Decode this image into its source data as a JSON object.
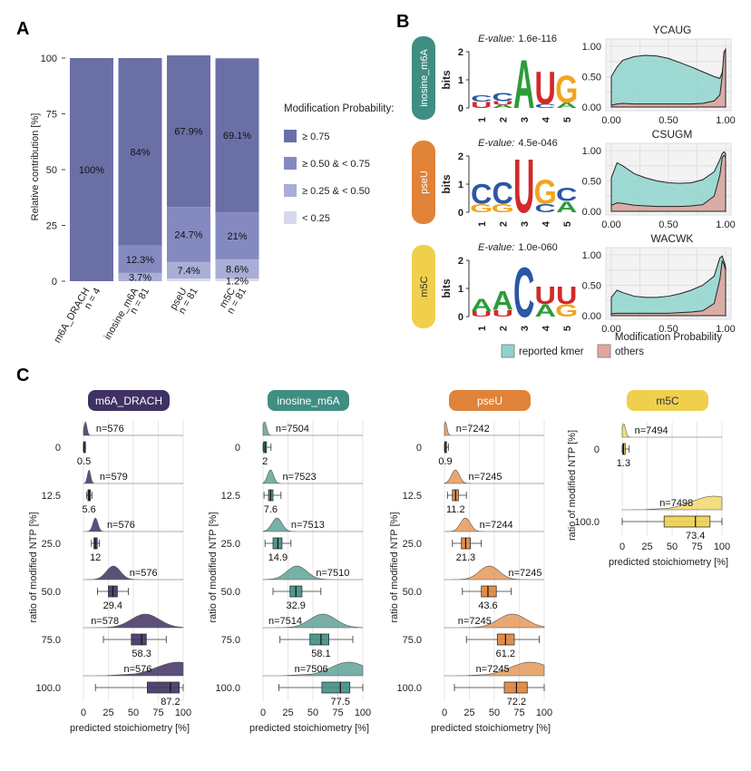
{
  "panels": {
    "A": "A",
    "B": "B",
    "C": "C"
  },
  "colors": {
    "bar_c1": "#6a70a6",
    "bar_c2": "#848ac0",
    "bar_c3": "#a9aed6",
    "bar_c4": "#d6d9ec",
    "kmer": "#8fd3cc",
    "others": "#e3a59e",
    "m6A_DRACH": "#3f3163",
    "inosine_m6A": "#3f8e83",
    "pseU": "#e08338",
    "m5C": "#f0cf4c",
    "logo_A": "#2e9b3a",
    "logo_C": "#2a57a6",
    "logo_G": "#f0a51e",
    "logo_U": "#d32929"
  },
  "panel_A": {
    "chart_data": {
      "type": "bar",
      "stacked": true,
      "ylabel": "Relative contribution [%]",
      "ylim": [
        0,
        100
      ],
      "yticks": [
        "0",
        "25",
        "50",
        "75",
        "100"
      ],
      "categories": [
        "m6A_DRACH",
        "inosine_m6A",
        "pseU",
        "m5C"
      ],
      "category_n": [
        "n = 4",
        "n = 81",
        "n = 81",
        "n = 81"
      ],
      "series": [
        {
          "name": "< 0.25",
          "values": [
            0,
            0,
            1.2,
            1.2
          ]
        },
        {
          "name": "≥ 0.25 & < 0.50",
          "values": [
            0,
            3.7,
            7.4,
            8.6
          ]
        },
        {
          "name": "≥ 0.50 & < 0.75",
          "values": [
            0,
            12.3,
            24.7,
            21
          ]
        },
        {
          "name": "≥ 0.75",
          "values": [
            100,
            84,
            67.9,
            69.1
          ]
        }
      ],
      "labels": [
        {
          "category": 0,
          "series": "≥ 0.75",
          "text": "100%"
        },
        {
          "category": 1,
          "series": "≥ 0.75",
          "text": "84%"
        },
        {
          "category": 1,
          "series": "≥ 0.50 & < 0.75",
          "text": "12.3%"
        },
        {
          "category": 1,
          "series": "≥ 0.25 & < 0.50",
          "text": "3.7%"
        },
        {
          "category": 2,
          "series": "≥ 0.75",
          "text": "67.9%"
        },
        {
          "category": 2,
          "series": "≥ 0.50 & < 0.75",
          "text": "24.7%"
        },
        {
          "category": 2,
          "series": "≥ 0.25 & < 0.50",
          "text": "7.4%"
        },
        {
          "category": 3,
          "series": "≥ 0.75",
          "text": "69.1%"
        },
        {
          "category": 3,
          "series": "≥ 0.50 & < 0.75",
          "text": "21%"
        },
        {
          "category": 3,
          "series": "≥ 0.25 & < 0.50",
          "text": "8.6%"
        },
        {
          "category": 3,
          "series": "< 0.25",
          "text": "1.2%"
        }
      ],
      "legend_title": "Modification Probability:",
      "legend": [
        "≥ 0.75",
        "≥ 0.50 & < 0.75",
        "≥ 0.25 & < 0.50",
        "< 0.25"
      ]
    }
  },
  "panel_B": {
    "chart_data": [
      {
        "type": "area",
        "title": "YCAUG",
        "group": "inosine_m6A",
        "evalue_label": "E-value:",
        "evalue": "1.6e-116",
        "logo_ylabel": "bits",
        "logo_yticks": [
          "0",
          "1",
          "2"
        ],
        "logo_positions": [
          "1",
          "2",
          "3",
          "4",
          "5"
        ],
        "logo": [
          [
            {
              "l": "U",
              "h": 0.22
            },
            {
              "l": "C",
              "h": 0.25
            }
          ],
          [
            {
              "l": "A",
              "h": 0.12
            },
            {
              "l": "U",
              "h": 0.12
            },
            {
              "l": "C",
              "h": 0.3
            }
          ],
          [
            {
              "l": "A",
              "h": 1.8
            }
          ],
          [
            {
              "l": "C",
              "h": 0.15
            },
            {
              "l": "U",
              "h": 1.2
            }
          ],
          [
            {
              "l": "A",
              "h": 0.2
            },
            {
              "l": "G",
              "h": 1.0
            }
          ]
        ],
        "x": [
          0,
          0.05,
          0.1,
          0.2,
          0.3,
          0.4,
          0.5,
          0.6,
          0.7,
          0.8,
          0.9,
          0.95,
          0.97,
          0.985,
          1.0
        ],
        "kmer": [
          0.5,
          0.66,
          0.77,
          0.83,
          0.85,
          0.84,
          0.8,
          0.73,
          0.66,
          0.58,
          0.5,
          0.47,
          0.57,
          0.8,
          0.95
        ],
        "others": [
          0.03,
          0.05,
          0.06,
          0.05,
          0.05,
          0.05,
          0.05,
          0.05,
          0.05,
          0.06,
          0.1,
          0.2,
          0.5,
          0.9,
          0.95
        ]
      },
      {
        "type": "area",
        "title": "CSUGM",
        "group": "pseU",
        "evalue_label": "E-value:",
        "evalue": "4.5e-046",
        "logo_ylabel": "bits",
        "logo_yticks": [
          "0",
          "1",
          "2"
        ],
        "logo_positions": [
          "1",
          "2",
          "3",
          "4",
          "5"
        ],
        "logo": [
          [
            {
              "l": "G",
              "h": 0.3
            },
            {
              "l": "C",
              "h": 0.75
            }
          ],
          [
            {
              "l": "G",
              "h": 0.3
            },
            {
              "l": "C",
              "h": 0.8
            }
          ],
          [
            {
              "l": "U",
              "h": 2.0
            }
          ],
          [
            {
              "l": "C",
              "h": 0.3
            },
            {
              "l": "G",
              "h": 0.9
            }
          ],
          [
            {
              "l": "A",
              "h": 0.4
            },
            {
              "l": "C",
              "h": 0.5
            }
          ]
        ],
        "x": [
          0,
          0.05,
          0.1,
          0.2,
          0.3,
          0.4,
          0.5,
          0.6,
          0.7,
          0.8,
          0.9,
          0.95,
          0.97,
          0.985,
          1.0
        ],
        "kmer": [
          0.55,
          0.8,
          0.75,
          0.62,
          0.55,
          0.5,
          0.47,
          0.46,
          0.47,
          0.52,
          0.65,
          0.85,
          0.95,
          0.98,
          0.95
        ],
        "others": [
          0.1,
          0.14,
          0.13,
          0.1,
          0.09,
          0.08,
          0.08,
          0.08,
          0.09,
          0.11,
          0.25,
          0.6,
          0.88,
          0.92,
          0.9
        ]
      },
      {
        "type": "area",
        "title": "WACWK",
        "group": "m5C",
        "evalue_label": "E-value:",
        "evalue": "1.0e-060",
        "logo_ylabel": "bits",
        "logo_yticks": [
          "0",
          "1",
          "2"
        ],
        "logo_positions": [
          "1",
          "2",
          "3",
          "4",
          "5"
        ],
        "logo": [
          [
            {
              "l": "U",
              "h": 0.2
            },
            {
              "l": "A",
              "h": 0.45
            }
          ],
          [
            {
              "l": "U",
              "h": 0.25
            },
            {
              "l": "A",
              "h": 0.7
            }
          ],
          [
            {
              "l": "C",
              "h": 1.85
            }
          ],
          [
            {
              "l": "A",
              "h": 0.45
            },
            {
              "l": "U",
              "h": 0.65
            }
          ],
          [
            {
              "l": "G",
              "h": 0.45
            },
            {
              "l": "U",
              "h": 0.65
            }
          ]
        ],
        "x": [
          0,
          0.05,
          0.1,
          0.2,
          0.3,
          0.4,
          0.5,
          0.6,
          0.7,
          0.8,
          0.9,
          0.95,
          0.97,
          0.985,
          1.0
        ],
        "kmer": [
          0.3,
          0.42,
          0.38,
          0.32,
          0.3,
          0.3,
          0.32,
          0.36,
          0.42,
          0.5,
          0.65,
          0.95,
          0.98,
          0.9,
          0.8
        ],
        "others": [
          0.03,
          0.04,
          0.04,
          0.04,
          0.04,
          0.04,
          0.04,
          0.05,
          0.06,
          0.08,
          0.2,
          0.6,
          0.9,
          0.85,
          0.75
        ]
      }
    ],
    "density_yticks": [
      "0.00",
      "0.50",
      "1.00"
    ],
    "density_xticks": [
      "0.00",
      "0.50",
      "1.00"
    ],
    "xlabel": "Modification Probability",
    "legend": [
      "reported kmer",
      "others"
    ]
  },
  "panel_C": {
    "ylabel": "ratio of modified NTP [%]",
    "xlabel": "predicted stoichiometry [%]",
    "xticks": [
      "0",
      "25",
      "50",
      "75",
      "100"
    ],
    "chart_data": [
      {
        "type": "box",
        "title": "m6A_DRACH",
        "rows": [
          {
            "ratio": "0",
            "n": "n=576",
            "median": "0.5",
            "box": [
              0.2,
              0.5,
              1.0
            ],
            "whisker": [
              0,
              2
            ],
            "peak": 2,
            "spread": 1.5
          },
          {
            "ratio": "12.5",
            "n": "n=579",
            "median": "5.6",
            "box": [
              4.5,
              5.6,
              7
            ],
            "whisker": [
              3,
              8.5
            ],
            "peak": 5.6,
            "spread": 1.6
          },
          {
            "ratio": "25.0",
            "n": "n=576",
            "median": "12",
            "box": [
              10.5,
              12,
              13.8
            ],
            "whisker": [
              8,
              16
            ],
            "peak": 12,
            "spread": 2.5
          },
          {
            "ratio": "50.0",
            "n": "n=576",
            "median": "29.4",
            "box": [
              25,
              29.4,
              34
            ],
            "whisker": [
              14,
              45
            ],
            "peak": 30,
            "spread": 7
          },
          {
            "ratio": "75.0",
            "n": "n=578",
            "median": "58.3",
            "box": [
              48,
              58.3,
              63
            ],
            "whisker": [
              20,
              83
            ],
            "peak": 62,
            "spread": 14
          },
          {
            "ratio": "100.0",
            "n": "n=576",
            "median": "87.2",
            "box": [
              64,
              87.2,
              96
            ],
            "whisker": [
              12,
              100
            ],
            "peak": 95,
            "spread": 22
          }
        ]
      },
      {
        "type": "box",
        "title": "inosine_m6A",
        "rows": [
          {
            "ratio": "0",
            "n": "n=7504",
            "median": "2",
            "box": [
              0.5,
              2,
              3.5
            ],
            "whisker": [
              0,
              8
            ],
            "peak": 1.5,
            "spread": 2
          },
          {
            "ratio": "12.5",
            "n": "n=7523",
            "median": "7.6",
            "box": [
              5.5,
              7.6,
              10
            ],
            "whisker": [
              1,
              18
            ],
            "peak": 7.5,
            "spread": 3
          },
          {
            "ratio": "25.0",
            "n": "n=7513",
            "median": "14.9",
            "box": [
              10,
              14.9,
              19
            ],
            "whisker": [
              2,
              28
            ],
            "peak": 14,
            "spread": 5
          },
          {
            "ratio": "50.0",
            "n": "n=7510",
            "median": "32.9",
            "box": [
              27,
              32.9,
              39
            ],
            "whisker": [
              10,
              58
            ],
            "peak": 34,
            "spread": 10
          },
          {
            "ratio": "75.0",
            "n": "n=7514",
            "median": "58.1",
            "box": [
              47,
              58.1,
              66
            ],
            "whisker": [
              17,
              90
            ],
            "peak": 60,
            "spread": 13
          },
          {
            "ratio": "100.0",
            "n": "n=7506",
            "median": "77.5",
            "box": [
              59,
              77.5,
              87
            ],
            "whisker": [
              16,
              100
            ],
            "peak": 86,
            "spread": 18
          }
        ]
      },
      {
        "type": "box",
        "title": "pseU",
        "rows": [
          {
            "ratio": "0",
            "n": "n=7242",
            "median": "0.9",
            "box": [
              0.3,
              0.9,
              1.8
            ],
            "whisker": [
              0,
              4
            ],
            "peak": 1,
            "spread": 1.5
          },
          {
            "ratio": "12.5",
            "n": "n=7245",
            "median": "11.2",
            "box": [
              8,
              11.2,
              14
            ],
            "whisker": [
              3,
              22
            ],
            "peak": 11,
            "spread": 4
          },
          {
            "ratio": "25.0",
            "n": "n=7244",
            "median": "21.3",
            "box": [
              17,
              21.3,
              26
            ],
            "whisker": [
              8,
              37
            ],
            "peak": 21,
            "spread": 5
          },
          {
            "ratio": "50.0",
            "n": "n=7245",
            "median": "43.6",
            "box": [
              37,
              43.6,
              52
            ],
            "whisker": [
              18,
              67
            ],
            "peak": 45,
            "spread": 10
          },
          {
            "ratio": "75.0",
            "n": "n=7245",
            "median": "61.2",
            "box": [
              53,
              61.2,
              70
            ],
            "whisker": [
              22,
              95
            ],
            "peak": 68,
            "spread": 14
          },
          {
            "ratio": "100.0",
            "n": "n=7245",
            "median": "72.2",
            "box": [
              60,
              72.2,
              83
            ],
            "whisker": [
              10,
              100
            ],
            "peak": 86,
            "spread": 20
          }
        ]
      },
      {
        "type": "box",
        "title": "m5C",
        "rows": [
          {
            "ratio": "0",
            "n": "n=7494",
            "median": "1.3",
            "box": [
              0.5,
              1.3,
              3
            ],
            "whisker": [
              0,
              7
            ],
            "peak": 1.5,
            "spread": 1.8
          },
          {
            "ratio": "100.0",
            "n": "n=7498",
            "median": "73.4",
            "box": [
              42,
              73.4,
              88
            ],
            "whisker": [
              0,
              100
            ],
            "peak": 92,
            "spread": 22
          }
        ]
      }
    ]
  }
}
